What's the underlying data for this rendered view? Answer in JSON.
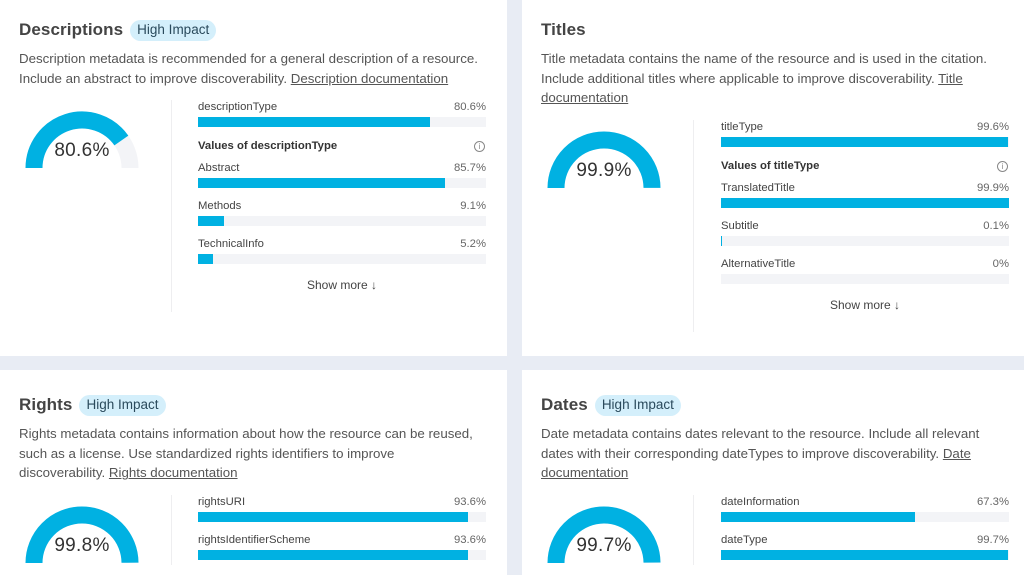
{
  "colors": {
    "accent": "#00b1e2",
    "badge_bg": "#d4effb",
    "track": "#f3f4f7",
    "page_bg": "#e8ecf4"
  },
  "cards": [
    {
      "title": "Descriptions",
      "badge": "High Impact",
      "description": "Description metadata is recommended for a general description of a resource. Include an abstract to improve discoverability. ",
      "doc_link": "Description documentation",
      "gauge": {
        "value": 80.6,
        "label": "80.6%"
      },
      "bars": [
        {
          "label": "descriptionType",
          "value": 80.6,
          "display": "80.6%"
        }
      ],
      "values_heading": "Values of descriptionType",
      "info_icon": "info-icon",
      "value_bars": [
        {
          "label": "Abstract",
          "value": 85.7,
          "display": "85.7%"
        },
        {
          "label": "Methods",
          "value": 9.1,
          "display": "9.1%"
        },
        {
          "label": "TechnicalInfo",
          "value": 5.2,
          "display": "5.2%"
        }
      ],
      "show_more": "Show more ↓"
    },
    {
      "title": "Titles",
      "badge": null,
      "description": "Title metadata contains the name of the resource and is used in the citation. Include additional titles where applicable to improve discoverability. ",
      "doc_link": "Title documentation",
      "gauge": {
        "value": 99.9,
        "label": "99.9%"
      },
      "bars": [
        {
          "label": "titleType",
          "value": 99.6,
          "display": "99.6%"
        }
      ],
      "values_heading": "Values of titleType",
      "info_icon": "info-icon",
      "value_bars": [
        {
          "label": "TranslatedTitle",
          "value": 99.9,
          "display": "99.9%"
        },
        {
          "label": "Subtitle",
          "value": 0.1,
          "display": "0.1%"
        },
        {
          "label": "AlternativeTitle",
          "value": 0,
          "display": "0%"
        }
      ],
      "show_more": "Show more ↓"
    },
    {
      "title": "Rights",
      "badge": "High Impact",
      "description": "Rights metadata contains information about how the resource can be reused, such as a license. Use standardized rights identifiers to improve discoverability. ",
      "doc_link": "Rights documentation",
      "gauge": {
        "value": 99.8,
        "label": "99.8%"
      },
      "bars": [
        {
          "label": "rightsURI",
          "value": 93.6,
          "display": "93.6%"
        },
        {
          "label": "rightsIdentifierScheme",
          "value": 93.6,
          "display": "93.6%"
        }
      ]
    },
    {
      "title": "Dates",
      "badge": "High Impact",
      "description": "Date metadata contains dates relevant to the resource. Include all relevant dates with their corresponding dateTypes to improve discoverability. ",
      "doc_link": "Date documentation",
      "gauge": {
        "value": 99.7,
        "label": "99.7%"
      },
      "bars": [
        {
          "label": "dateInformation",
          "value": 67.3,
          "display": "67.3%"
        },
        {
          "label": "dateType",
          "value": 99.7,
          "display": "99.7%"
        }
      ]
    }
  ]
}
